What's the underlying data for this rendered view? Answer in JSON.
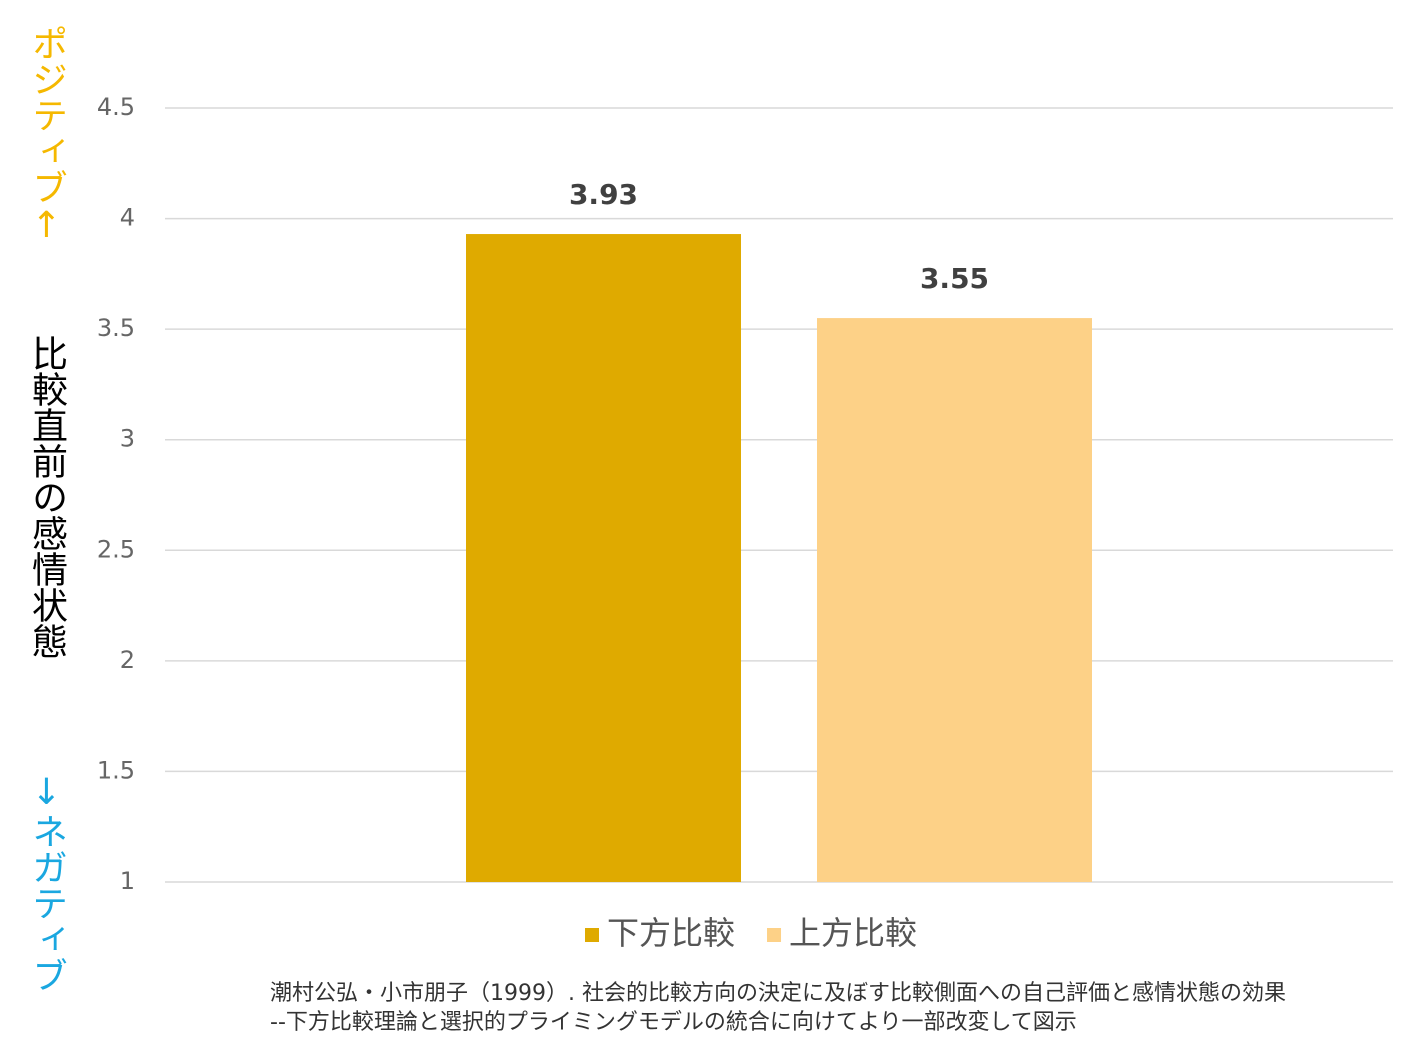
{
  "chart_data": {
    "type": "bar",
    "y_label_top": "ポジティブ↑",
    "y_label": "比較直前の感情状態",
    "y_label_bottom": "↓ネガティブ",
    "categories": [
      null
    ],
    "series": [
      {
        "name": "下方比較",
        "color": "#DFAA00",
        "values": [
          3.93
        ]
      },
      {
        "name": "上方比較",
        "color": "#FDD187",
        "values": [
          3.55
        ]
      }
    ],
    "ylim": [
      1,
      4.5
    ],
    "yticks": [
      1,
      1.5,
      2,
      2.5,
      3,
      3.5,
      4,
      4.5
    ],
    "grid": true,
    "legend": "bottom",
    "source": [
      "潮村公弘・小市朋子（1999）. 社会的比較方向の決定に及ぼす比較側面への自己評価と感情状態の効果",
      "--下方比較理論と選択的プライミングモデルの統合に向けてより一部改変して図示"
    ]
  }
}
